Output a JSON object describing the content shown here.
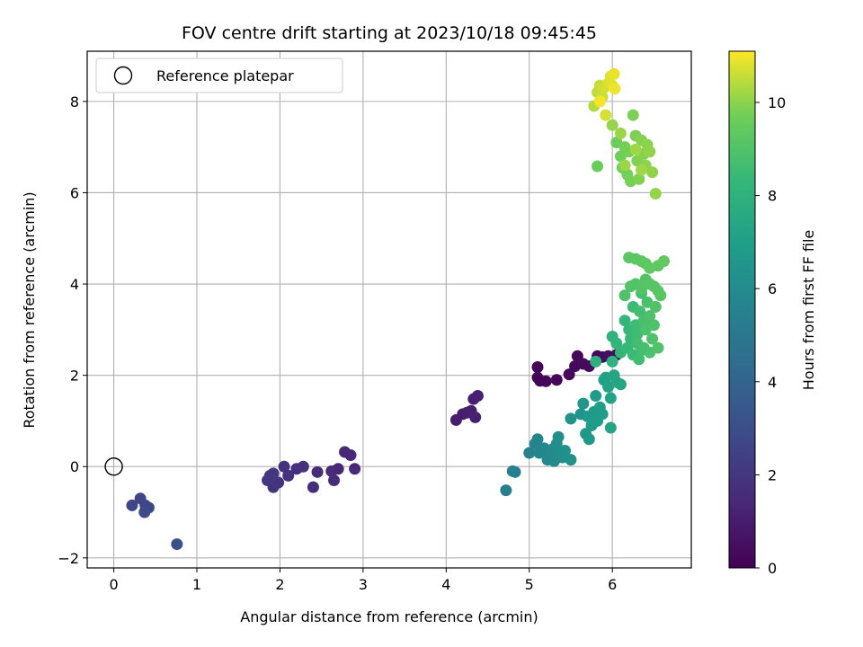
{
  "chart_data": {
    "type": "scatter",
    "title": "FOV centre drift starting at 2023/10/18 09:45:45",
    "xlabel": "Angular distance from reference (arcmin)",
    "ylabel": "Rotation from reference (arcmin)",
    "xlim": [
      -0.32,
      6.95
    ],
    "ylim": [
      -2.22,
      9.1
    ],
    "xticks": [
      0,
      1,
      2,
      3,
      4,
      5,
      6
    ],
    "yticks": [
      -2,
      0,
      2,
      4,
      6,
      8
    ],
    "grid": true,
    "legend": {
      "placement": "top-left",
      "entries": [
        "Reference platepar"
      ]
    },
    "reference_point": {
      "x": 0,
      "y": 0,
      "label": "Reference platepar"
    },
    "colorbar": {
      "label": "Hours from first FF file",
      "colormap": "viridis",
      "range": [
        0,
        11.1
      ],
      "ticks": [
        0,
        2,
        4,
        6,
        8,
        10
      ]
    },
    "series": [
      {
        "points": [
          [
            5.1,
            2.18
          ],
          [
            5.1,
            1.95
          ],
          [
            5.13,
            1.88
          ],
          [
            5.2,
            1.87
          ],
          [
            5.33,
            1.9
          ],
          [
            5.48,
            2.02
          ],
          [
            5.55,
            2.2
          ],
          [
            5.58,
            2.42
          ],
          [
            5.65,
            2.25
          ],
          [
            5.72,
            2.2
          ],
          [
            5.82,
            2.42
          ],
          [
            5.88,
            2.4
          ],
          [
            5.95,
            2.42
          ],
          [
            6.0,
            2.38
          ],
          [
            6.05,
            2.45
          ],
          [
            4.12,
            1.02
          ],
          [
            4.2,
            1.15
          ],
          [
            4.25,
            1.18
          ],
          [
            4.3,
            1.22
          ],
          [
            4.33,
            1.48
          ],
          [
            4.38,
            1.55
          ],
          [
            4.35,
            1.08
          ]
        ],
        "hours": [
          0.1,
          0.1,
          0.15,
          0.2,
          0.2,
          0.25,
          0.3,
          0.3,
          0.35,
          0.35,
          0.4,
          0.4,
          0.45,
          0.45,
          0.5,
          1.0,
          1.0,
          1.05,
          1.05,
          1.1,
          1.1,
          1.15
        ]
      },
      {
        "points": [
          [
            2.7,
            -0.05
          ],
          [
            2.78,
            0.32
          ],
          [
            2.85,
            0.25
          ],
          [
            2.9,
            -0.05
          ],
          [
            2.65,
            -0.3
          ],
          [
            2.62,
            -0.1
          ],
          [
            2.45,
            -0.12
          ],
          [
            2.4,
            -0.45
          ],
          [
            2.28,
            0.0
          ],
          [
            2.2,
            -0.05
          ],
          [
            2.1,
            -0.2
          ],
          [
            2.05,
            0.0
          ],
          [
            1.98,
            -0.35
          ],
          [
            1.92,
            -0.45
          ],
          [
            1.85,
            -0.3
          ],
          [
            1.88,
            -0.2
          ],
          [
            1.92,
            -0.15
          ]
        ],
        "hours": [
          1.4,
          1.45,
          1.45,
          1.5,
          1.55,
          1.55,
          1.6,
          1.65,
          1.7,
          1.7,
          1.75,
          1.8,
          1.85,
          1.9,
          1.95,
          2.0,
          2.0
        ]
      },
      {
        "points": [
          [
            0.22,
            -0.85
          ],
          [
            0.32,
            -0.7
          ],
          [
            0.38,
            -0.85
          ],
          [
            0.42,
            -0.9
          ],
          [
            0.37,
            -1.0
          ],
          [
            0.76,
            -1.7
          ]
        ],
        "hours": [
          2.6,
          2.65,
          2.7,
          2.75,
          2.8,
          3.1
        ]
      },
      {
        "points": [
          [
            4.72,
            -0.52
          ],
          [
            4.8,
            -0.1
          ],
          [
            4.83,
            -0.12
          ],
          [
            5.0,
            0.3
          ],
          [
            5.07,
            0.5
          ],
          [
            5.1,
            0.6
          ],
          [
            5.12,
            0.3
          ],
          [
            5.18,
            0.4
          ],
          [
            5.22,
            0.15
          ],
          [
            5.25,
            0.25
          ],
          [
            5.28,
            0.38
          ],
          [
            5.3,
            0.12
          ],
          [
            5.33,
            0.5
          ],
          [
            5.35,
            0.65
          ],
          [
            5.37,
            0.3
          ],
          [
            5.4,
            0.2
          ],
          [
            5.43,
            0.35
          ],
          [
            5.5,
            0.15
          ],
          [
            5.5,
            1.05
          ],
          [
            5.62,
            1.15
          ],
          [
            5.65,
            1.38
          ],
          [
            5.68,
            0.72
          ],
          [
            5.7,
            1.1
          ],
          [
            5.72,
            0.6
          ],
          [
            5.75,
            0.9
          ],
          [
            5.78,
            1.2
          ],
          [
            5.8,
            1.55
          ],
          [
            5.82,
            1.0
          ],
          [
            5.85,
            1.3
          ],
          [
            5.88,
            1.15
          ],
          [
            5.9,
            1.9
          ],
          [
            5.92,
            1.95
          ],
          [
            5.95,
            1.75
          ],
          [
            5.98,
            1.5
          ],
          [
            5.98,
            0.85
          ],
          [
            6.02,
            2.0
          ],
          [
            6.05,
            1.85
          ],
          [
            6.1,
            1.8
          ]
        ],
        "hours": [
          5.3,
          5.4,
          5.45,
          5.6,
          5.65,
          5.7,
          5.75,
          5.8,
          5.85,
          5.9,
          5.95,
          6.0,
          6.05,
          6.1,
          6.15,
          6.2,
          6.25,
          6.3,
          6.4,
          6.5,
          6.55,
          6.6,
          6.65,
          6.7,
          6.75,
          6.8,
          6.85,
          6.9,
          6.95,
          7.0,
          7.05,
          7.1,
          7.15,
          7.2,
          7.25,
          7.3,
          7.35,
          7.4
        ]
      },
      {
        "points": [
          [
            5.8,
            2.3
          ],
          [
            6.0,
            2.3
          ],
          [
            6.0,
            2.85
          ],
          [
            6.05,
            2.7
          ],
          [
            6.1,
            2.5
          ],
          [
            6.15,
            3.2
          ],
          [
            6.18,
            2.6
          ],
          [
            6.2,
            3.0
          ],
          [
            6.22,
            2.8
          ],
          [
            6.25,
            2.45
          ],
          [
            6.25,
            3.5
          ],
          [
            6.28,
            3.1
          ],
          [
            6.3,
            2.9
          ],
          [
            6.32,
            2.35
          ],
          [
            6.33,
            3.4
          ],
          [
            6.35,
            3.8
          ],
          [
            6.38,
            2.6
          ],
          [
            6.38,
            3.2
          ],
          [
            6.4,
            3.0
          ],
          [
            6.42,
            3.6
          ],
          [
            6.45,
            2.5
          ],
          [
            6.45,
            3.3
          ],
          [
            6.48,
            2.8
          ],
          [
            6.5,
            3.1
          ],
          [
            6.52,
            3.5
          ],
          [
            6.55,
            2.6
          ],
          [
            6.15,
            3.75
          ],
          [
            6.22,
            3.95
          ],
          [
            6.28,
            4.0
          ],
          [
            6.35,
            3.9
          ],
          [
            6.4,
            4.1
          ],
          [
            6.45,
            4.0
          ],
          [
            6.5,
            3.95
          ],
          [
            6.55,
            3.85
          ],
          [
            6.58,
            3.75
          ],
          [
            6.2,
            4.58
          ],
          [
            6.28,
            4.55
          ],
          [
            6.35,
            4.5
          ],
          [
            6.4,
            4.45
          ],
          [
            6.45,
            4.35
          ],
          [
            6.55,
            4.4
          ],
          [
            6.62,
            4.5
          ],
          [
            6.3,
            2.7
          ],
          [
            6.35,
            2.55
          ]
        ],
        "hours": [
          7.9,
          8.0,
          8.1,
          8.15,
          8.2,
          8.25,
          8.3,
          8.35,
          8.4,
          8.45,
          8.5,
          8.55,
          8.6,
          8.65,
          8.7,
          8.75,
          8.8,
          8.8,
          8.85,
          8.85,
          8.9,
          8.9,
          8.95,
          8.95,
          9.0,
          9.0,
          9.0,
          9.05,
          9.05,
          9.1,
          9.1,
          9.15,
          9.15,
          9.2,
          9.2,
          9.25,
          9.25,
          9.3,
          9.3,
          9.35,
          9.35,
          9.4,
          8.7,
          8.75
        ]
      },
      {
        "points": [
          [
            5.82,
            6.58
          ],
          [
            6.05,
            7.1
          ],
          [
            6.1,
            6.8
          ],
          [
            6.12,
            6.55
          ],
          [
            6.15,
            7.0
          ],
          [
            6.18,
            6.4
          ],
          [
            6.2,
            6.9
          ],
          [
            6.22,
            6.25
          ],
          [
            6.25,
            7.7
          ],
          [
            6.28,
            7.25
          ],
          [
            6.3,
            6.7
          ],
          [
            6.32,
            6.3
          ],
          [
            6.35,
            7.15
          ],
          [
            6.38,
            6.85
          ],
          [
            6.4,
            6.6
          ],
          [
            6.42,
            7.05
          ],
          [
            6.45,
            6.9
          ],
          [
            6.48,
            6.45
          ],
          [
            6.52,
            5.98
          ],
          [
            6.0,
            7.48
          ],
          [
            6.1,
            7.3
          ],
          [
            6.15,
            6.6
          ],
          [
            6.28,
            6.95
          ],
          [
            6.35,
            6.5
          ]
        ],
        "hours": [
          9.6,
          9.65,
          9.7,
          9.7,
          9.75,
          9.75,
          9.8,
          9.8,
          9.85,
          9.85,
          9.9,
          9.9,
          9.95,
          9.95,
          10.0,
          10.0,
          10.05,
          10.05,
          10.1,
          10.1,
          10.15,
          10.15,
          10.2,
          10.2
        ]
      },
      {
        "points": [
          [
            5.78,
            7.9
          ],
          [
            5.82,
            8.2
          ],
          [
            5.85,
            8.35
          ],
          [
            5.88,
            8.1
          ],
          [
            5.9,
            8.3
          ],
          [
            5.92,
            7.7
          ],
          [
            5.95,
            8.4
          ],
          [
            5.98,
            8.55
          ],
          [
            6.0,
            8.35
          ],
          [
            6.02,
            8.6
          ],
          [
            6.03,
            8.28
          ],
          [
            5.85,
            8.0
          ]
        ],
        "hours": [
          10.4,
          10.5,
          10.55,
          10.6,
          10.65,
          10.7,
          10.75,
          10.8,
          10.85,
          10.9,
          10.95,
          11.0
        ]
      }
    ]
  }
}
